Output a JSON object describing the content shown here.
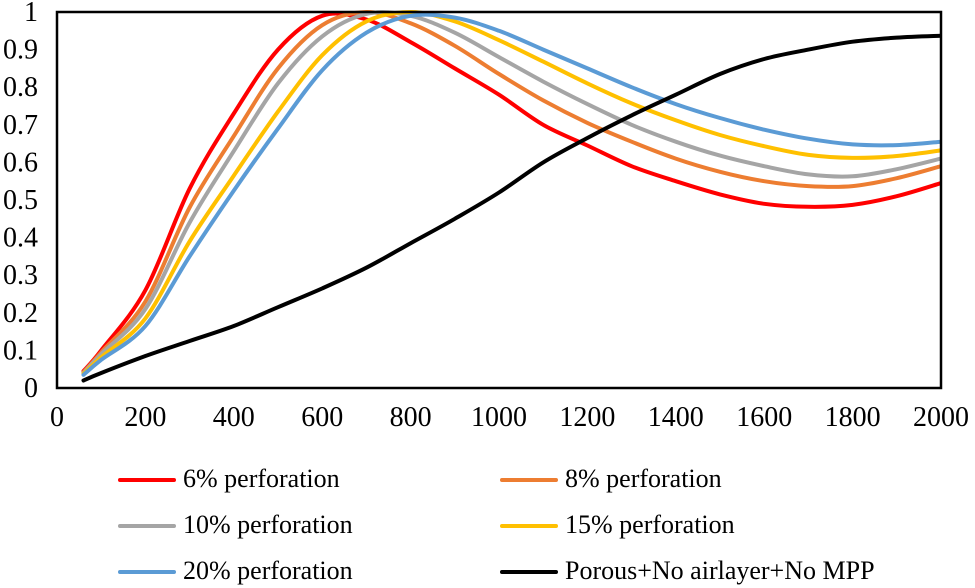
{
  "chart_data": {
    "type": "line",
    "title": "",
    "xlabel": "",
    "ylabel": "",
    "xlim": [
      0,
      2000
    ],
    "ylim": [
      0,
      1
    ],
    "grid": false,
    "legend_position": "bottom",
    "axis_color": "#000000",
    "x_tick_labels": [
      "0",
      "200",
      "400",
      "600",
      "800",
      "1000",
      "1200",
      "1400",
      "1600",
      "1800",
      "2000"
    ],
    "y_tick_labels": [
      "0",
      "0.1",
      "0.2",
      "0.3",
      "0.4",
      "0.5",
      "0.6",
      "0.7",
      "0.8",
      "0.9",
      "1"
    ],
    "x": [
      60,
      100,
      200,
      300,
      400,
      500,
      600,
      700,
      800,
      900,
      1000,
      1100,
      1200,
      1300,
      1400,
      1500,
      1600,
      1700,
      1800,
      1900,
      2000
    ],
    "series": [
      {
        "name": "6% perforation",
        "color": "#FF0000",
        "values": [
          0.045,
          0.1,
          0.26,
          0.53,
          0.73,
          0.9,
          0.99,
          0.98,
          0.92,
          0.85,
          0.78,
          0.7,
          0.645,
          0.59,
          0.55,
          0.515,
          0.49,
          0.482,
          0.487,
          0.51,
          0.545
        ]
      },
      {
        "name": "8% perforation",
        "color": "#ED7D31",
        "values": [
          0.042,
          0.095,
          0.23,
          0.48,
          0.67,
          0.85,
          0.965,
          1.0,
          0.97,
          0.91,
          0.835,
          0.765,
          0.705,
          0.655,
          0.61,
          0.575,
          0.55,
          0.537,
          0.537,
          0.558,
          0.59
        ]
      },
      {
        "name": "10% perforation",
        "color": "#A5A5A5",
        "values": [
          0.04,
          0.09,
          0.21,
          0.44,
          0.63,
          0.81,
          0.935,
          0.995,
          0.99,
          0.945,
          0.88,
          0.815,
          0.755,
          0.7,
          0.655,
          0.618,
          0.59,
          0.568,
          0.563,
          0.582,
          0.61
        ]
      },
      {
        "name": "15% perforation",
        "color": "#FFC000",
        "values": [
          0.038,
          0.082,
          0.185,
          0.39,
          0.565,
          0.735,
          0.885,
          0.975,
          1.0,
          0.975,
          0.925,
          0.868,
          0.81,
          0.757,
          0.712,
          0.673,
          0.643,
          0.62,
          0.612,
          0.617,
          0.632
        ]
      },
      {
        "name": "20% perforation",
        "color": "#5B9BD5",
        "values": [
          0.035,
          0.075,
          0.165,
          0.35,
          0.525,
          0.69,
          0.845,
          0.945,
          0.99,
          0.985,
          0.95,
          0.9,
          0.85,
          0.8,
          0.755,
          0.718,
          0.687,
          0.663,
          0.648,
          0.646,
          0.655
        ]
      },
      {
        "name": "Porous+No airlayer+No MPP",
        "color": "#000000",
        "values": [
          0.02,
          0.04,
          0.085,
          0.125,
          0.165,
          0.215,
          0.265,
          0.32,
          0.385,
          0.45,
          0.52,
          0.6,
          0.665,
          0.725,
          0.78,
          0.835,
          0.875,
          0.9,
          0.921,
          0.932,
          0.937
        ]
      }
    ],
    "legend_column_major_order": [
      0,
      2,
      4,
      1,
      3,
      5
    ]
  }
}
